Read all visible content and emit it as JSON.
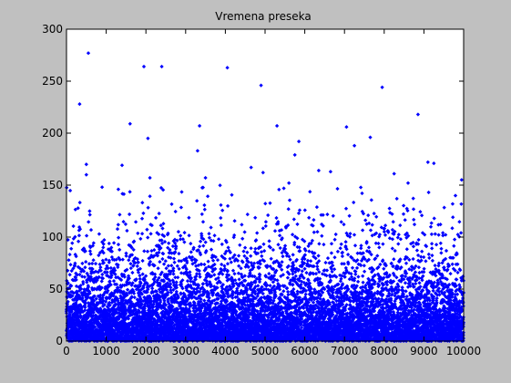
{
  "window": {
    "background": "#c0c0c0",
    "axes_background": "#ffffff"
  },
  "chart_data": {
    "type": "scatter",
    "title": "Vremena preseka",
    "xlabel": "",
    "ylabel": "",
    "xlim": [
      0,
      10000
    ],
    "ylim": [
      0,
      300
    ],
    "xticks": [
      0,
      1000,
      2000,
      3000,
      4000,
      5000,
      6000,
      7000,
      8000,
      9000,
      10000
    ],
    "yticks": [
      0,
      50,
      100,
      150,
      200,
      250,
      300
    ],
    "xtick_labels": [
      "0",
      "1000",
      "2000",
      "3000",
      "4000",
      "5000",
      "6000",
      "7000",
      "8000",
      "9000",
      "10000"
    ],
    "ytick_labels": [
      "0",
      "50",
      "100",
      "150",
      "200",
      "250",
      "300"
    ],
    "grid": false,
    "marker_color": "#0000ff",
    "series": [
      {
        "n_points": 10000,
        "distribution": "approximately exponential, dense below 50, sparse above 150",
        "notable_points": [
          {
            "x": 550,
            "y": 277
          },
          {
            "x": 330,
            "y": 228
          },
          {
            "x": 1950,
            "y": 264
          },
          {
            "x": 2400,
            "y": 264
          },
          {
            "x": 4050,
            "y": 263
          },
          {
            "x": 4900,
            "y": 246
          },
          {
            "x": 7950,
            "y": 244
          },
          {
            "x": 8850,
            "y": 218
          },
          {
            "x": 1600,
            "y": 209
          },
          {
            "x": 3350,
            "y": 207
          },
          {
            "x": 5300,
            "y": 207
          },
          {
            "x": 7050,
            "y": 206
          },
          {
            "x": 2050,
            "y": 195
          },
          {
            "x": 7650,
            "y": 196
          },
          {
            "x": 5850,
            "y": 192
          },
          {
            "x": 7250,
            "y": 188
          },
          {
            "x": 3300,
            "y": 183
          },
          {
            "x": 5750,
            "y": 179
          },
          {
            "x": 500,
            "y": 170
          },
          {
            "x": 1400,
            "y": 169
          },
          {
            "x": 9100,
            "y": 172
          },
          {
            "x": 9250,
            "y": 171
          },
          {
            "x": 4650,
            "y": 167
          },
          {
            "x": 6350,
            "y": 164
          },
          {
            "x": 6650,
            "y": 163
          },
          {
            "x": 8250,
            "y": 161
          },
          {
            "x": 4950,
            "y": 162
          },
          {
            "x": 500,
            "y": 160
          },
          {
            "x": 3500,
            "y": 157
          },
          {
            "x": 2100,
            "y": 157
          },
          {
            "x": 9950,
            "y": 155
          },
          {
            "x": 5600,
            "y": 152
          },
          {
            "x": 8600,
            "y": 152
          }
        ]
      }
    ]
  }
}
